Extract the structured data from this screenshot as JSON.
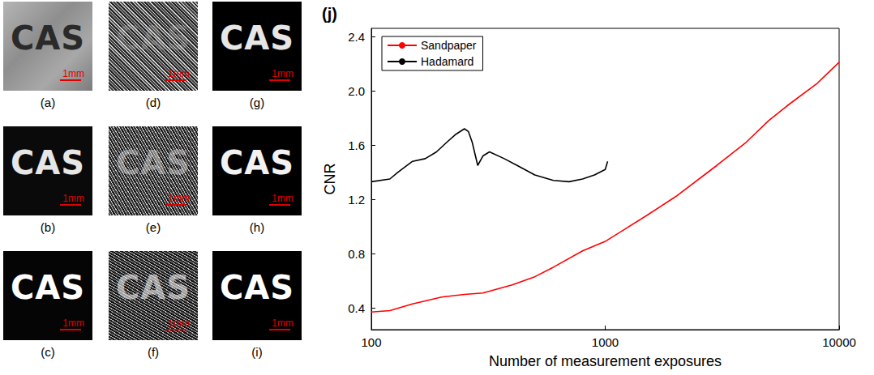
{
  "chart_data": {
    "type": "line",
    "title": "(j)",
    "x_label": "Number of measurement exposures",
    "y_label": "CNR",
    "log": "x",
    "grid": false,
    "legend": "upper left",
    "xlim": [
      100,
      10000
    ],
    "xticks": [
      100,
      1000,
      10000
    ],
    "ylim": [
      0.24,
      2.46
    ],
    "yticks": [
      0.4,
      0.8,
      1.2,
      1.6,
      {
        "value": 2,
        "label": "2.0"
      },
      2.4
    ],
    "series": [
      {
        "name": "Sandpaper",
        "color": "#ff0000",
        "x": [
          100,
          120,
          150,
          200,
          250,
          300,
          400,
          500,
          600,
          800,
          1000,
          1500,
          2000,
          3000,
          4000,
          5000,
          6000,
          8000,
          10000
        ],
        "values": [
          0.37,
          0.38,
          0.43,
          0.48,
          0.5,
          0.51,
          0.57,
          0.63,
          0.7,
          0.82,
          0.89,
          1.08,
          1.22,
          1.45,
          1.62,
          1.78,
          1.89,
          2.05,
          2.21
        ]
      },
      {
        "name": "Hadamard",
        "color": "#000000",
        "x": [
          100,
          120,
          130,
          150,
          170,
          190,
          210,
          230,
          250,
          260,
          270,
          285,
          300,
          320,
          370,
          420,
          500,
          600,
          700,
          800,
          900,
          1000,
          1024
        ],
        "values": [
          1.33,
          1.35,
          1.4,
          1.48,
          1.5,
          1.55,
          1.62,
          1.68,
          1.72,
          1.7,
          1.62,
          1.45,
          1.52,
          1.55,
          1.5,
          1.45,
          1.38,
          1.34,
          1.33,
          1.35,
          1.38,
          1.42,
          1.48
        ]
      }
    ]
  },
  "panels": [
    {
      "label": "(a)",
      "content": "CAS",
      "scale_bar": "1mm"
    },
    {
      "label": "(b)",
      "content": "CAS",
      "scale_bar": "1mm"
    },
    {
      "label": "(c)",
      "content": "CAS",
      "scale_bar": "1mm"
    },
    {
      "label": "(d)",
      "content": "CAS",
      "scale_bar": "1mm"
    },
    {
      "label": "(e)",
      "content": "CAS",
      "scale_bar": "1mm"
    },
    {
      "label": "(f)",
      "content": "CAS",
      "scale_bar": "1mm"
    },
    {
      "label": "(g)",
      "content": "CAS",
      "scale_bar": "1mm"
    },
    {
      "label": "(h)",
      "content": "CAS",
      "scale_bar": "1mm"
    },
    {
      "label": "(i)",
      "content": "CAS",
      "scale_bar": "1mm"
    }
  ]
}
